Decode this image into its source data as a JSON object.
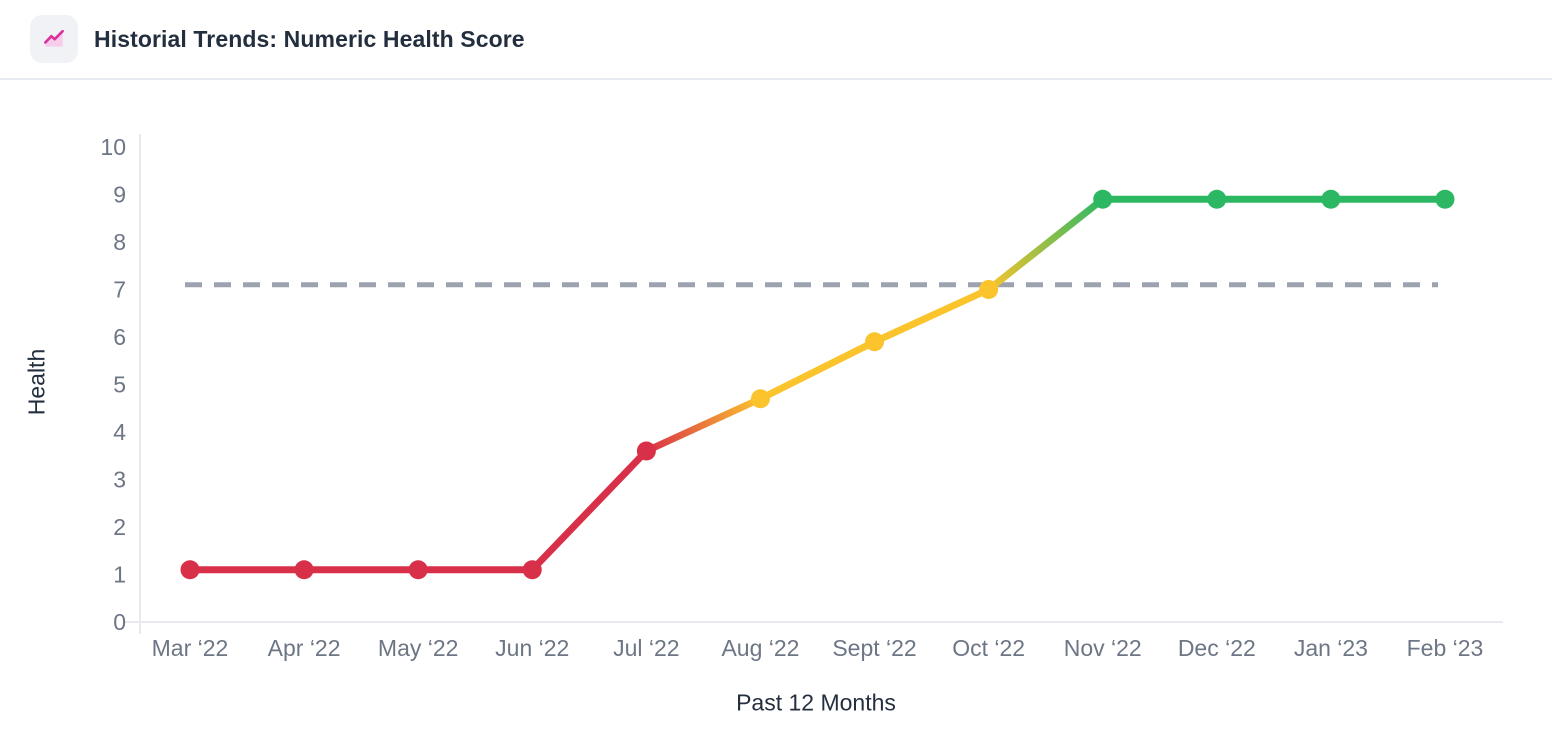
{
  "header": {
    "title": "Historial Trends: Numeric Health Score",
    "icon": "trend-area-chart-icon"
  },
  "chart_data": {
    "type": "line",
    "title": "Historial Trends: Numeric Health Score",
    "xlabel": "Past 12 Months",
    "ylabel": "Health",
    "ylim": [
      0,
      10
    ],
    "yticks": [
      0,
      1,
      2,
      3,
      4,
      5,
      6,
      7,
      8,
      9,
      10
    ],
    "categories": [
      "Mar ‘22",
      "Apr ‘22",
      "May ‘22",
      "Jun ‘22",
      "Jul ‘22",
      "Aug ‘22",
      "Sept ‘22",
      "Oct ‘22",
      "Nov ‘22",
      "Dec ‘22",
      "Jan ‘23",
      "Feb ‘23"
    ],
    "series": [
      {
        "name": "Numeric Health Score",
        "values": [
          1.1,
          1.1,
          1.1,
          1.1,
          3.6,
          4.7,
          5.9,
          7.0,
          8.9,
          8.9,
          8.9,
          8.9
        ],
        "point_colors": [
          "#d93049",
          "#d93049",
          "#d93049",
          "#d93049",
          "#d93049",
          "#fbc42d",
          "#fbc42d",
          "#fbc42d",
          "#2cb863",
          "#2cb863",
          "#2cb863",
          "#2cb863"
        ]
      }
    ],
    "threshold_line": {
      "value": 7.1,
      "style": "dashed",
      "color": "#9ca3af"
    },
    "grid": false,
    "legend": false
  },
  "colors": {
    "red": "#d93049",
    "yellow": "#fbc42d",
    "green": "#2cb863",
    "threshold_gray": "#9ca3af",
    "axis_line": "#e8eaf0",
    "tick_text": "#6d7685",
    "label_text": "#232f3e",
    "icon_pink": "#d9309b",
    "icon_pink_fill": "#f7cdeb",
    "icon_bg": "#f1f2f5"
  }
}
